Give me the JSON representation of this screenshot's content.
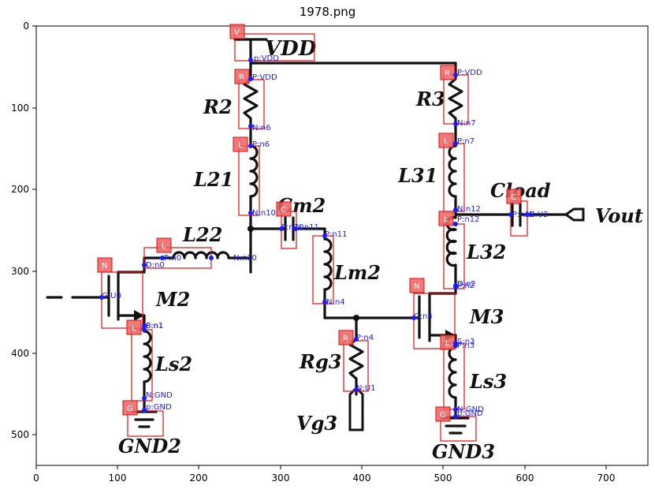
{
  "title": "1978.png",
  "axes": {
    "x_ticks": [
      "0",
      "100",
      "200",
      "300",
      "400",
      "500",
      "600",
      "700"
    ],
    "y_ticks": [
      "0",
      "100",
      "200",
      "300",
      "400",
      "500"
    ]
  },
  "labels": {
    "vdd": "VDD",
    "r2": "R2",
    "r3": "R3",
    "l21": "L21",
    "l31": "L31",
    "cm2": "Cm2",
    "cload": "Cload",
    "vout": "Vout",
    "l22": "L22",
    "l32": "L32",
    "lm2": "Lm2",
    "m2": "M2",
    "m3": "M3",
    "ls2": "Ls2",
    "ls3": "Ls3",
    "rg3": "Rg3",
    "vg3": "Vg3",
    "gnd2": "GND2",
    "gnd3": "GND3"
  },
  "tags": {
    "vdd": "V",
    "r2": "R",
    "r3": "R",
    "l21": "L",
    "l31": "L",
    "cm2": "C",
    "cload": "C",
    "l22": "L",
    "l32": "L",
    "m2": "N",
    "m3": "N",
    "ls2": "L",
    "ls3": "L",
    "rg3": "R",
    "gnd2": "G",
    "gnd3": "G"
  },
  "pins": {
    "vdd_p": "p:VDD",
    "r2_p": "P:VDD",
    "r2_n": "N:n6",
    "r3_p": "P:VDD",
    "r3_n": "N:n7",
    "l21_p": "P:n6",
    "l21_n": "N:n10",
    "l31_p": "P:n7",
    "l31_n": "N:n12",
    "cm2_p": "P:n10",
    "cm2_n": "N:n11",
    "l22_p": "P:n0",
    "l22_n": "N:n10",
    "lm2_p": "P:n11",
    "lm2_n": "N:n4",
    "l32_p": "P:n12",
    "l32_n": "P:n2",
    "cload_p": "P:n12",
    "cload_n": "N:U2",
    "m2_d": "D:n0",
    "m2_g": "G:U0",
    "m2_s": "S:n1",
    "m3_d": "D:n2",
    "m3_g": "G:n4",
    "m3_s": "S:n3",
    "ls2_p": "P:n1",
    "ls2_n": "N:GND",
    "ls3_p": "P:n3",
    "ls3_n": "N:GND",
    "rg3_p": "P:n4",
    "rg3_n": "N:U1",
    "gnd2_p": "p:GND",
    "gnd3_p": "p:GND"
  },
  "colors": {
    "wire": "#111111",
    "box": "#e01010",
    "tag": "#f06060",
    "pin": "#1a1aff"
  }
}
